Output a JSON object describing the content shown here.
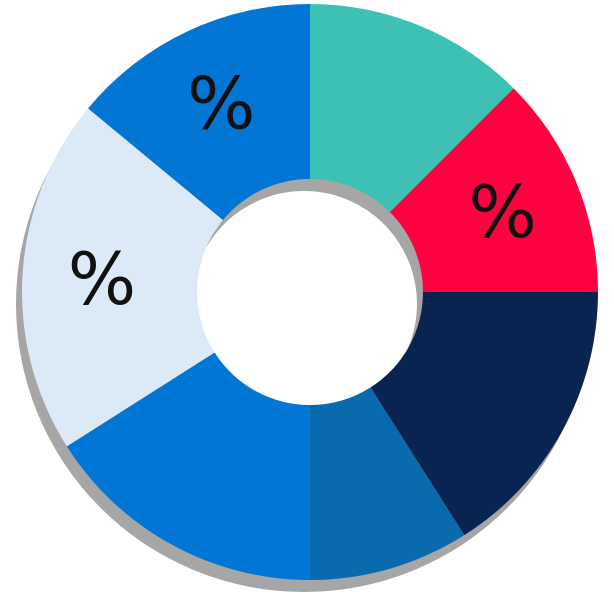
{
  "chart_data": {
    "type": "pie",
    "variant": "donut",
    "title": "",
    "legend": "none",
    "slices": [
      {
        "value": 12.5,
        "color": "#3EC1B5",
        "label": ""
      },
      {
        "value": 12.5,
        "color": "#FF0040",
        "label": "%"
      },
      {
        "value": 16.0,
        "color": "#0A2451",
        "label": ""
      },
      {
        "value": 9.0,
        "color": "#0A6AAE",
        "label": ""
      },
      {
        "value": 16.0,
        "color": "#0276D4",
        "label": ""
      },
      {
        "value": 20.0,
        "color": "#DCEAF8",
        "label": "%"
      },
      {
        "value": 14.0,
        "color": "#0276D4",
        "label": "%"
      }
    ],
    "shadow_color": "#A6A6A6"
  }
}
